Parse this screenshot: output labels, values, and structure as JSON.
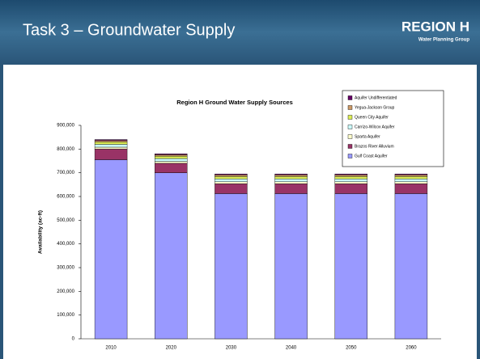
{
  "slide": {
    "title": "Task 3 – Groundwater Supply",
    "logo": "REGION H",
    "logo_subtitle": "Water Planning Group"
  },
  "chart_data": {
    "type": "stacked-bar",
    "title": "Region H Ground Water Supply Sources",
    "y_label": "Availability (ac-ft)",
    "categories": [
      "2010",
      "2020",
      "2030",
      "2040",
      "2050",
      "2060"
    ],
    "series": [
      {
        "name": "Gulf Coast Aquifer",
        "color": "#9999ff",
        "values": [
          755000,
          700000,
          612000,
          612000,
          612000,
          612000
        ]
      },
      {
        "name": "Brazos River Alluvium",
        "color": "#993366",
        "values": [
          45000,
          40000,
          42000,
          42000,
          42000,
          42000
        ]
      },
      {
        "name": "Sparta Aquifer",
        "color": "#ffffcc",
        "values": [
          8000,
          8000,
          8000,
          8000,
          8000,
          8000
        ]
      },
      {
        "name": "Carrizo-Wilcox Aquifer",
        "color": "#ccffff",
        "values": [
          12000,
          12000,
          12000,
          12000,
          12000,
          12000
        ]
      },
      {
        "name": "Queen City Aquifer",
        "color": "#ddee55",
        "values": [
          10000,
          10000,
          10000,
          10000,
          10000,
          10000
        ]
      },
      {
        "name": "Yegua-Jackson Group",
        "color": "#cc9966",
        "values": [
          6000,
          6000,
          7000,
          7000,
          7000,
          7000
        ]
      },
      {
        "name": "Aquifer Undifferentiated",
        "color": "#660066",
        "values": [
          4000,
          4000,
          4000,
          4000,
          4000,
          4000
        ]
      }
    ],
    "ylim": [
      0,
      900000
    ],
    "yticks": [
      0,
      {
        "value": 100000,
        "label": "100,000"
      },
      {
        "value": 200000,
        "label": "200,000"
      },
      {
        "value": 300000,
        "label": "300,000"
      },
      {
        "value": 400000,
        "label": "400,000"
      },
      {
        "value": 500000,
        "label": "500,000"
      },
      {
        "value": 600000,
        "label": "600,000"
      },
      {
        "value": 700000,
        "label": "700,000"
      },
      {
        "value": 800000,
        "label": "800,000"
      },
      {
        "value": 900000,
        "label": "900,000"
      }
    ],
    "grid": false
  }
}
